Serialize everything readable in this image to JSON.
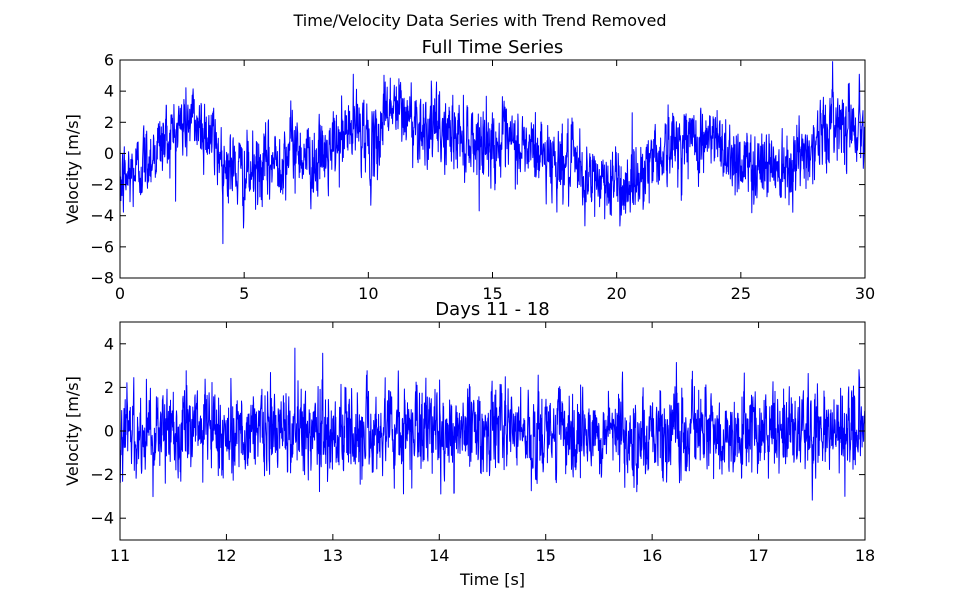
{
  "figure": {
    "suptitle": "Time/Velocity Data Series with Trend Removed"
  },
  "chart_data": [
    {
      "type": "line",
      "title": "Full Time Series",
      "xlabel": "",
      "ylabel": "Velocity [m/s]",
      "xlim": [
        0,
        30
      ],
      "ylim": [
        -8,
        6
      ],
      "x_ticks": [
        "0",
        "5",
        "10",
        "15",
        "20",
        "25",
        "30"
      ],
      "y_ticks": [
        "−8",
        "−6",
        "−4",
        "−2",
        "0",
        "2",
        "4",
        "6"
      ],
      "grid": false,
      "line_color": "#0000ff",
      "series": [
        {
          "trend_x": [
            0,
            1,
            2,
            2.8,
            3.5,
            4.2,
            5,
            5.6,
            6.3,
            7,
            7.8,
            8.5,
            9.2,
            9.8,
            10.2,
            10.7,
            11.5,
            12.5,
            13.5,
            14.5,
            15.5,
            16.5,
            17.5,
            18.2,
            18.8,
            19.5,
            20.2,
            20.8,
            21.5,
            22.3,
            23,
            24,
            25,
            25.5,
            26.5,
            27.5,
            28.2,
            29,
            30
          ],
          "trend_y": [
            -2,
            -0.5,
            1.2,
            2.2,
            1.5,
            -0.5,
            -1.5,
            -1.2,
            -0.5,
            0.5,
            -0.5,
            0,
            1.5,
            1.8,
            -0.5,
            3.2,
            2.4,
            1.6,
            1.2,
            0.8,
            0.5,
            0.3,
            -0.4,
            -0.8,
            -1.8,
            -1.6,
            -2.2,
            -1.5,
            -0.2,
            0.6,
            0.9,
            0.8,
            -0.6,
            -0.8,
            -0.6,
            -0.2,
            1.2,
            2.4,
            1.5
          ],
          "noise_std": 1.1,
          "extremes": {
            "max": 5.9,
            "min": -6.2
          }
        }
      ]
    },
    {
      "type": "line",
      "title": "Days 11 - 18",
      "xlabel": "Time [s]",
      "ylabel": "Velocity [m/s]",
      "xlim": [
        11,
        18
      ],
      "ylim": [
        -5,
        5
      ],
      "x_ticks": [
        "11",
        "12",
        "13",
        "14",
        "15",
        "16",
        "17",
        "18"
      ],
      "y_ticks": [
        "−4",
        "−2",
        "0",
        "2",
        "4"
      ],
      "grid": false,
      "line_color": "#0000ff",
      "series": [
        {
          "trend_x": [
            11,
            18
          ],
          "trend_y": [
            0,
            0
          ],
          "noise_std": 0.95,
          "extremes": {
            "max": 4.2,
            "min": -4.4
          }
        }
      ]
    }
  ]
}
